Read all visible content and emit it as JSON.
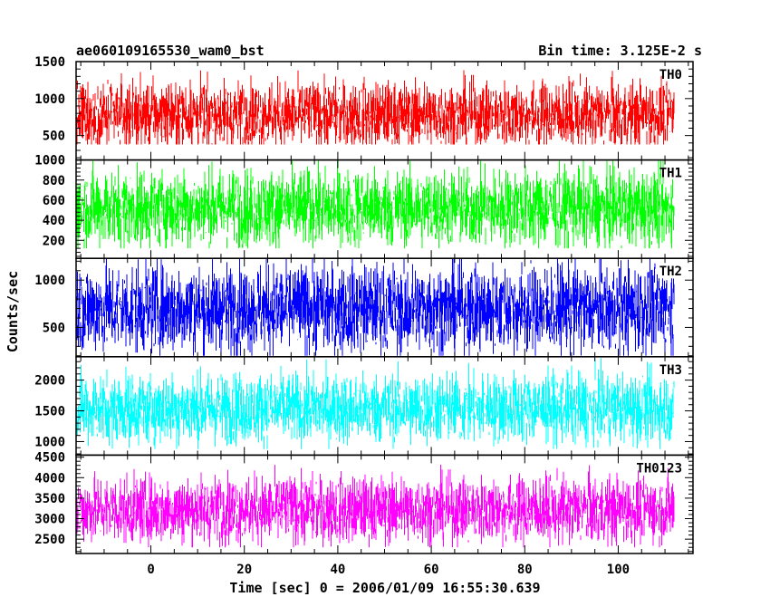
{
  "chart_data": {
    "type": "line",
    "title": "ae060109165530_wam0_bst",
    "subtitle": "Bin time: 3.125E-2 s",
    "xlabel": "Time [sec] 0 = 2006/01/09 16:55:30.639",
    "ylabel": "Counts/sec",
    "xlim": [
      -16,
      116
    ],
    "x_start": -16,
    "x_end": 112,
    "x_ticks": [
      0,
      20,
      40,
      60,
      80,
      100
    ],
    "x_tick_labels": [
      "0",
      "20",
      "40",
      "60",
      "80",
      "100"
    ],
    "grid": false,
    "series": [
      {
        "name": "TH0",
        "color": "#ff0000",
        "ylim": [
          170,
          1500
        ],
        "y_ticks": [
          500,
          1000,
          1500
        ],
        "y_tick_labels": [
          "500",
          "1000",
          "1500"
        ],
        "mean": 780,
        "spread": 220,
        "min": 380,
        "max": 1500
      },
      {
        "name": "TH1",
        "color": "#00ff00",
        "ylim": [
          20,
          1000
        ],
        "y_ticks": [
          200,
          400,
          600,
          800,
          1000
        ],
        "y_tick_labels": [
          "200",
          "400",
          "600",
          "800",
          "1000"
        ],
        "mean": 520,
        "spread": 190,
        "min": 120,
        "max": 1000
      },
      {
        "name": "TH2",
        "color": "#0000ff",
        "ylim": [
          190,
          1230
        ],
        "y_ticks": [
          500,
          1000
        ],
        "y_tick_labels": [
          "500",
          "1000"
        ],
        "mean": 700,
        "spread": 230,
        "min": 200,
        "max": 1230
      },
      {
        "name": "TH3",
        "color": "#00ffff",
        "ylim": [
          780,
          2380
        ],
        "y_ticks": [
          1000,
          1500,
          2000
        ],
        "y_tick_labels": [
          "1000",
          "1500",
          "2000"
        ],
        "mean": 1540,
        "spread": 280,
        "min": 880,
        "max": 2360
      },
      {
        "name": "TH0123",
        "color": "#ff00ff",
        "ylim": [
          2150,
          4550
        ],
        "y_ticks": [
          2500,
          3000,
          3500,
          4000,
          4500
        ],
        "y_tick_labels": [
          "2500",
          "3000",
          "3500",
          "4000",
          "4500"
        ],
        "mean": 3220,
        "spread": 400,
        "min": 2300,
        "max": 4550
      }
    ]
  }
}
